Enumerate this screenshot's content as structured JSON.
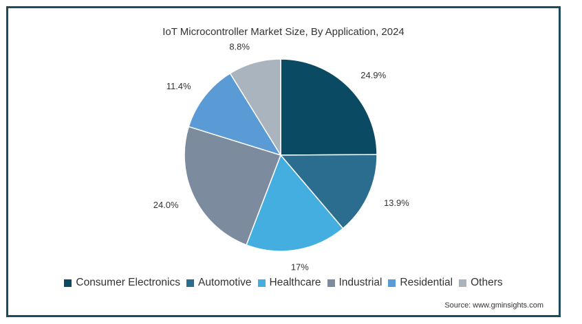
{
  "chart_data": {
    "type": "pie",
    "title": "IoT Microcontroller Market Size, By Application, 2024",
    "slices": [
      {
        "name": "Consumer Electronics",
        "value": 24.9,
        "label": "24.9%",
        "color": "#0b4a63"
      },
      {
        "name": "Automotive",
        "value": 13.9,
        "label": "13.9%",
        "color": "#2a6d8f"
      },
      {
        "name": "Healthcare",
        "value": 17.0,
        "label": "17%",
        "color": "#44aee0"
      },
      {
        "name": "Industrial",
        "value": 24.0,
        "label": "24.0%",
        "color": "#7c8b9e"
      },
      {
        "name": "Residential",
        "value": 11.4,
        "label": "11.4%",
        "color": "#5b9bd5"
      },
      {
        "name": "Others",
        "value": 8.8,
        "label": "8.8%",
        "color": "#a9b4be"
      }
    ],
    "legend_position": "bottom",
    "start_angle": "12 o'clock",
    "direction": "clockwise"
  },
  "source": "Source: www.gminsights.com"
}
